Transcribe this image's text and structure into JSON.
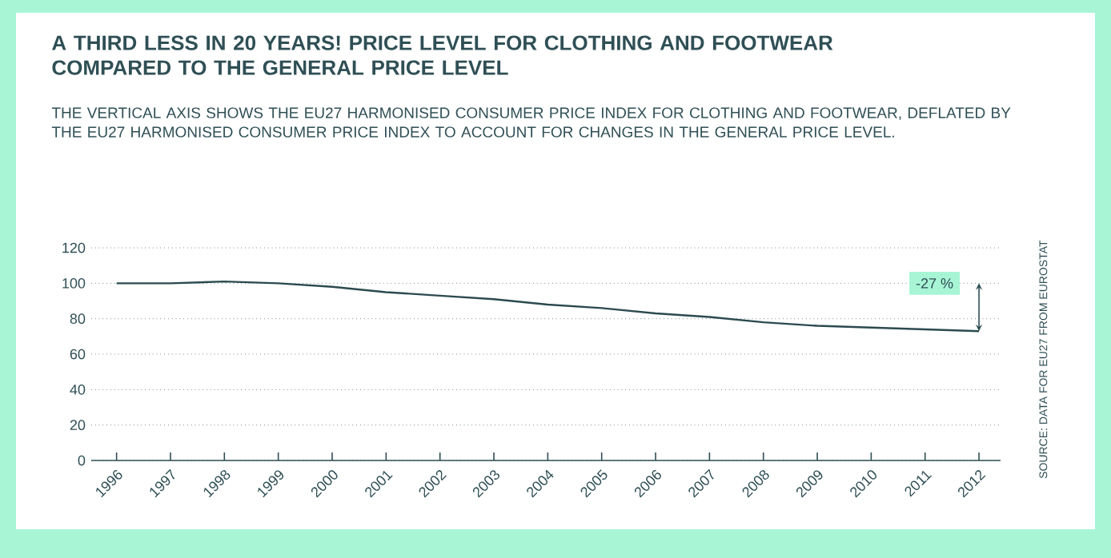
{
  "chart_data": {
    "type": "line",
    "title": "A THIRD LESS IN 20 YEARS! PRICE LEVEL FOR CLOTHING AND FOOTWEAR COMPARED TO THE GENERAL PRICE LEVEL",
    "subtitle": "THE VERTICAL AXIS SHOWS THE EU27 HARMONISED CONSUMER PRICE INDEX FOR CLOTHING AND FOOTWEAR, DEFLATED BY THE EU27 HARMONISED CONSUMER PRICE INDEX TO ACCOUNT FOR CHANGES IN THE GENERAL PRICE LEVEL.",
    "categories": [
      "1996",
      "1997",
      "1998",
      "1999",
      "2000",
      "2001",
      "2002",
      "2003",
      "2004",
      "2005",
      "2006",
      "2007",
      "2008",
      "2009",
      "2010",
      "2011",
      "2012"
    ],
    "series": [
      {
        "color": "#2b4a4f",
        "values": [
          100,
          100,
          101,
          100,
          98,
          95,
          93,
          91,
          88,
          86,
          83,
          81,
          78,
          76,
          75,
          74,
          73
        ]
      }
    ],
    "ylim": [
      0,
      120
    ],
    "yticks": [
      0,
      20,
      40,
      60,
      80,
      100,
      120
    ],
    "grid": "y",
    "marker": "none",
    "line_style": "solid",
    "annotations": [
      "-27 %",
      "SOURCE: DATA FOR EU27 FROM EUROSTAT"
    ]
  }
}
